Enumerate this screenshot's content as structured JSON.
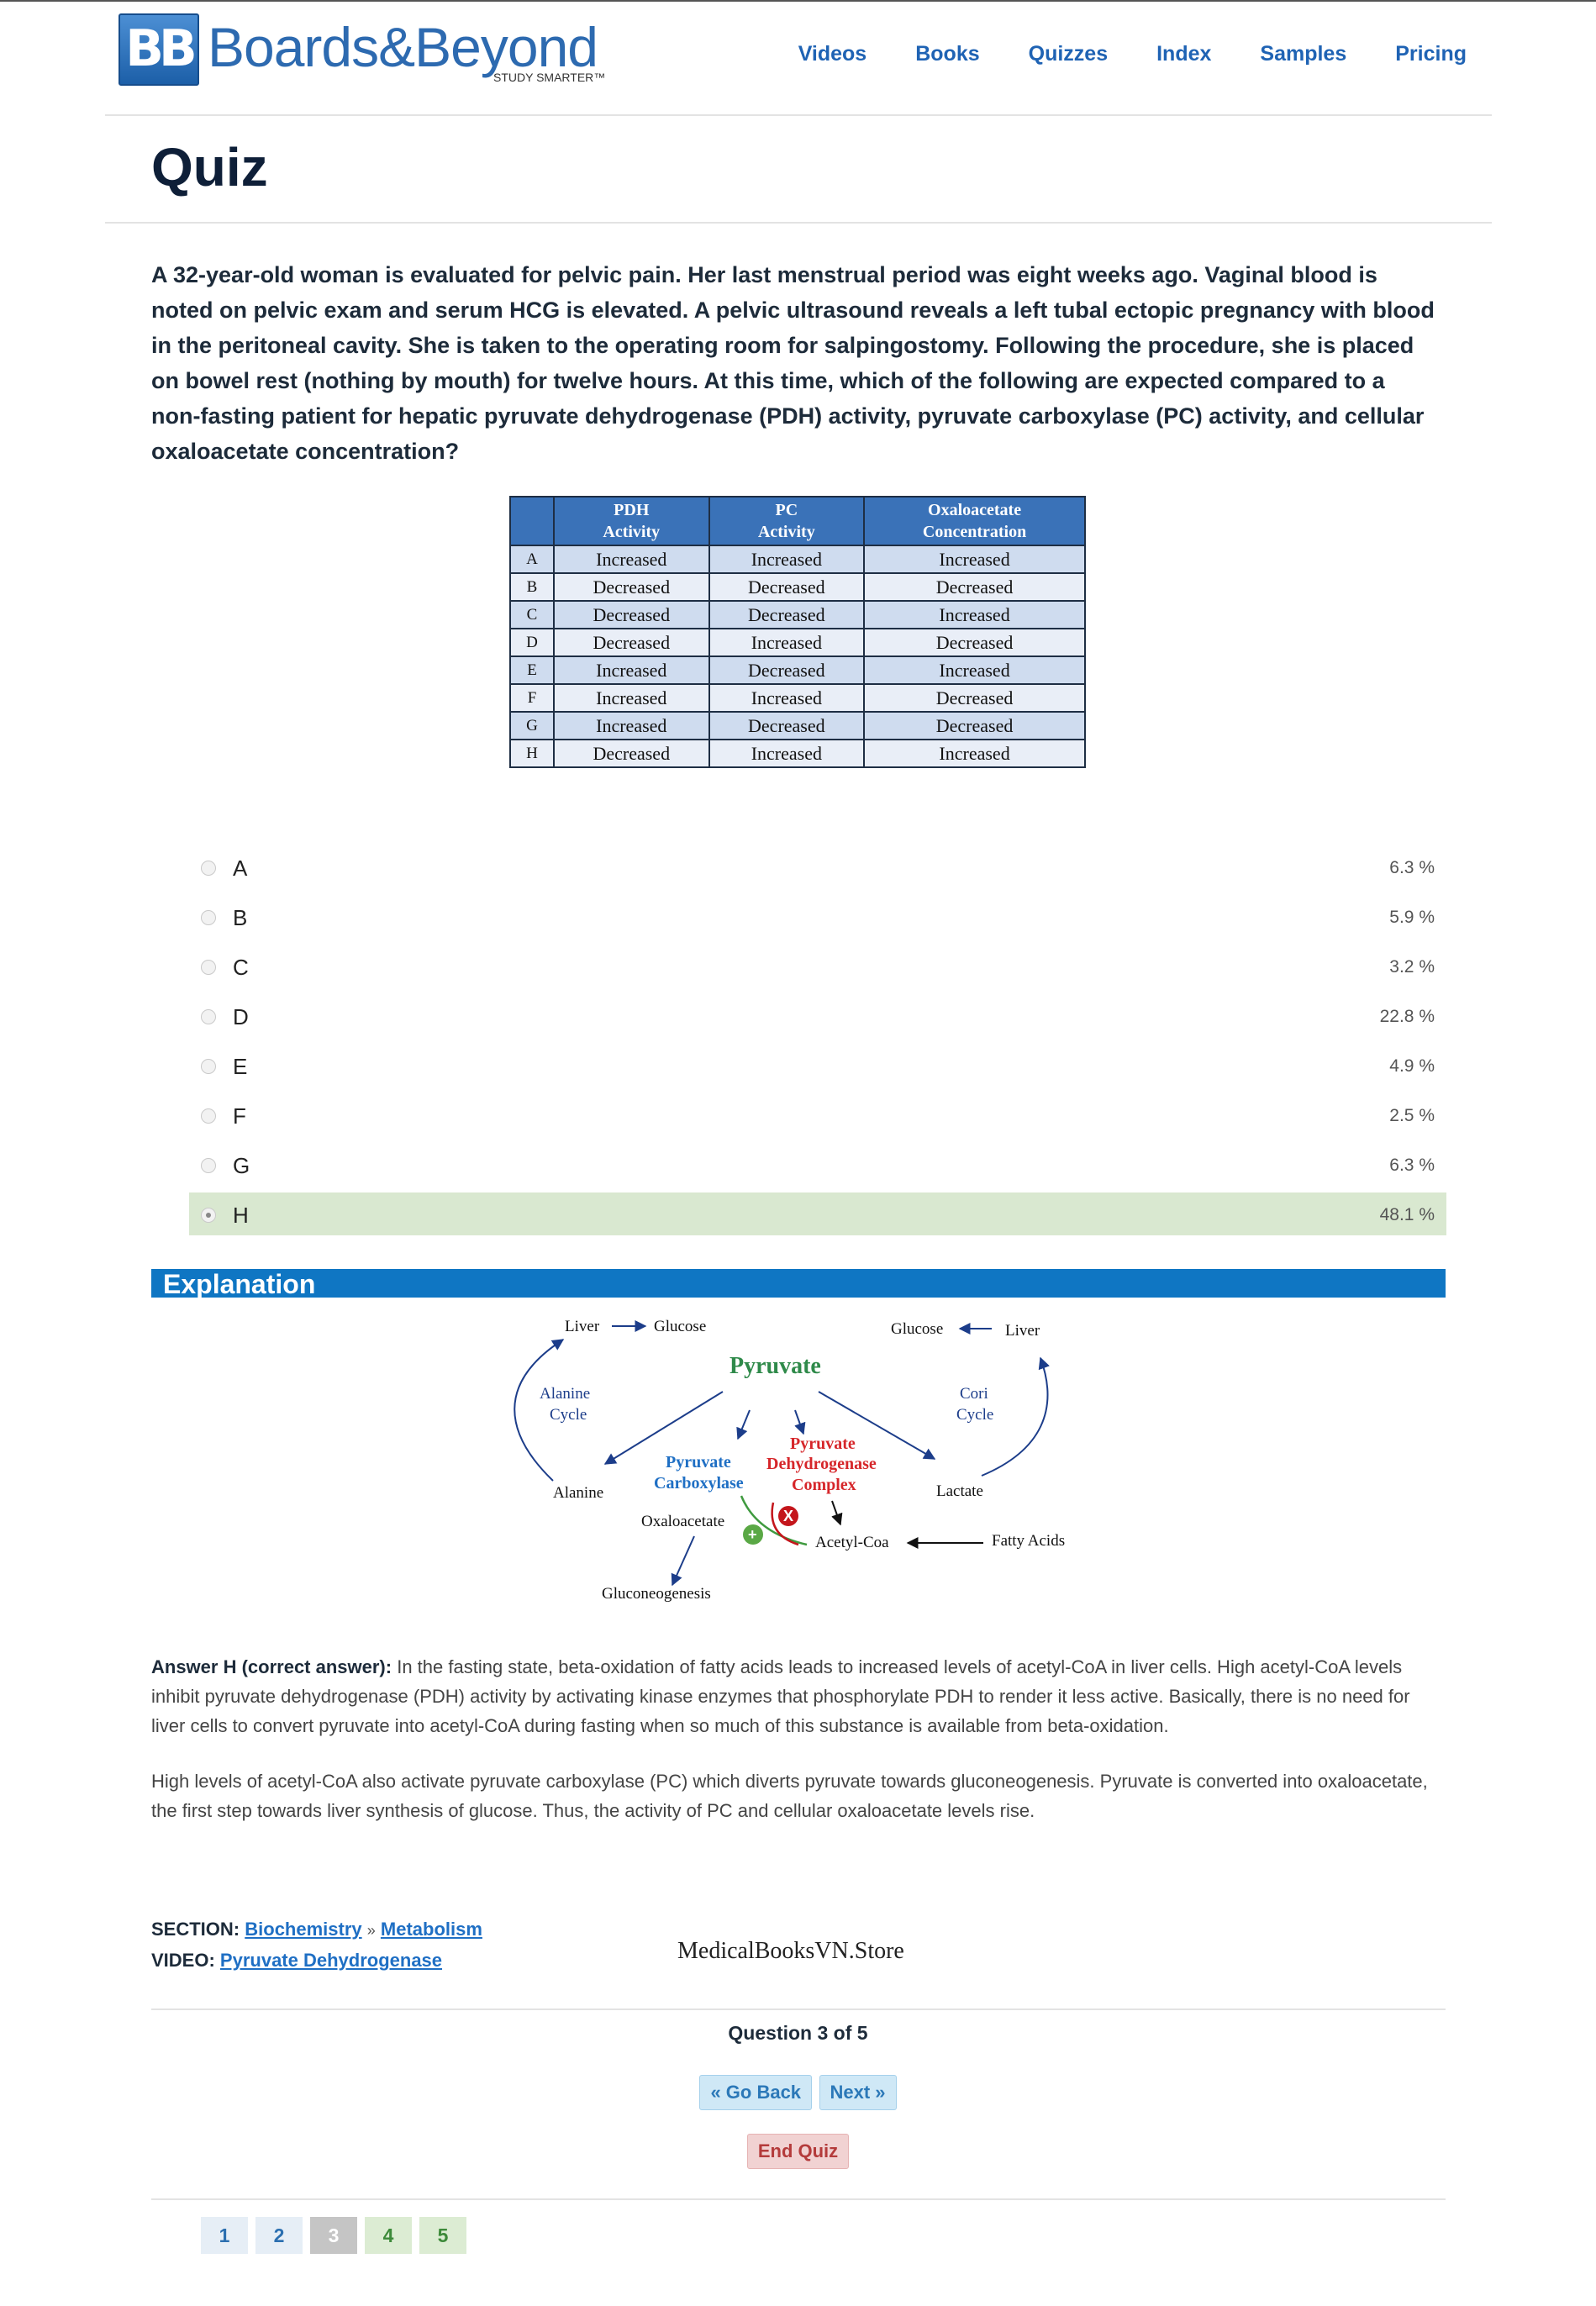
{
  "brand": {
    "badge": "BB",
    "name": "Boards&Beyond",
    "tagline": "STUDY SMARTER™"
  },
  "nav": [
    "Videos",
    "Books",
    "Quizzes",
    "Index",
    "Samples",
    "Pricing"
  ],
  "page_title": "Quiz",
  "question": "A 32-year-old woman is evaluated for pelvic pain. Her last menstrual period was eight weeks ago. Vaginal blood is noted on pelvic exam and serum HCG is elevated. A pelvic ultrasound reveals a left tubal ectopic pregnancy with blood in the peritoneal cavity. She is taken to the operating room for salpingostomy. Following the procedure, she is placed on bowel rest (nothing by mouth) for twelve hours. At this time, which of the following are expected compared to a non-fasting patient for hepatic pyruvate dehydrogenase (PDH) activity, pyruvate carboxylase (PC) activity, and cellular oxaloacetate concentration?",
  "table": {
    "headers": [
      {
        "line1": "PDH",
        "line2": "Activity"
      },
      {
        "line1": "PC",
        "line2": "Activity"
      },
      {
        "line1": "Oxaloacetate",
        "line2": "Concentration"
      }
    ],
    "rows": [
      {
        "letter": "A",
        "pdh": "Increased",
        "pc": "Increased",
        "oaa": "Increased"
      },
      {
        "letter": "B",
        "pdh": "Decreased",
        "pc": "Decreased",
        "oaa": "Decreased"
      },
      {
        "letter": "C",
        "pdh": "Decreased",
        "pc": "Decreased",
        "oaa": "Increased"
      },
      {
        "letter": "D",
        "pdh": "Decreased",
        "pc": "Increased",
        "oaa": "Decreased"
      },
      {
        "letter": "E",
        "pdh": "Increased",
        "pc": "Decreased",
        "oaa": "Increased"
      },
      {
        "letter": "F",
        "pdh": "Increased",
        "pc": "Increased",
        "oaa": "Decreased"
      },
      {
        "letter": "G",
        "pdh": "Increased",
        "pc": "Decreased",
        "oaa": "Decreased"
      },
      {
        "letter": "H",
        "pdh": "Decreased",
        "pc": "Increased",
        "oaa": "Increased"
      }
    ]
  },
  "choices": [
    {
      "letter": "A",
      "percent": "6.3 %"
    },
    {
      "letter": "B",
      "percent": "5.9 %"
    },
    {
      "letter": "C",
      "percent": "3.2 %"
    },
    {
      "letter": "D",
      "percent": "22.8 %"
    },
    {
      "letter": "E",
      "percent": "4.9 %"
    },
    {
      "letter": "F",
      "percent": "2.5 %"
    },
    {
      "letter": "G",
      "percent": "6.3 %"
    },
    {
      "letter": "H",
      "percent": "48.1 %",
      "correct": true
    }
  ],
  "explanation": {
    "title": "Explanation",
    "diagram": {
      "liver_left": "Liver",
      "glucose_left": "Glucose",
      "glucose_right": "Glucose",
      "liver_right": "Liver",
      "pyruvate": "Pyruvate",
      "alanine_cycle_1": "Alanine",
      "alanine_cycle_2": "Cycle",
      "cori_cycle_1": "Cori",
      "cori_cycle_2": "Cycle",
      "pc_1": "Pyruvate",
      "pc_2": "Carboxylase",
      "pdh_1": "Pyruvate",
      "pdh_2": "Dehydrogenase",
      "pdh_3": "Complex",
      "alanine": "Alanine",
      "lactate": "Lactate",
      "oxaloacetate": "Oxaloacetate",
      "acetyl_coa": "Acetyl-Coa",
      "fatty_acids": "Fatty Acids",
      "gluconeogenesis": "Gluconeogenesis",
      "plus": "+",
      "inhibit": "X"
    },
    "answer_label": "Answer H (correct answer):",
    "answer_text": "In the fasting state, beta-oxidation of fatty acids leads to increased levels of acetyl-CoA in liver cells. High acetyl-CoA levels inhibit pyruvate dehydrogenase (PDH) activity by activating kinase enzymes that phosphorylate PDH to render it less active. Basically, there is no need for liver cells to convert pyruvate into acetyl-CoA during fasting when so much of this substance is available from beta-oxidation.",
    "answer_text_2": "High levels of acetyl-CoA also activate pyruvate carboxylase (PC) which diverts pyruvate towards gluconeogenesis. Pyruvate is converted into oxaloacetate, the first step towards liver synthesis of glucose. Thus, the activity of PC and cellular oxaloacetate levels rise."
  },
  "meta": {
    "section_label": "SECTION:",
    "section_link_1": "Biochemistry",
    "section_sep": "»",
    "section_link_2": "Metabolism",
    "video_label": "VIDEO:",
    "video_link": "Pyruvate Dehydrogenase"
  },
  "watermark": "MedicalBooksVN.Store",
  "footer": {
    "question_count": "Question 3 of 5",
    "go_back": "« Go Back",
    "next": "Next »",
    "end_quiz": "End Quiz",
    "pages": [
      "1",
      "2",
      "3",
      "4",
      "5"
    ]
  }
}
